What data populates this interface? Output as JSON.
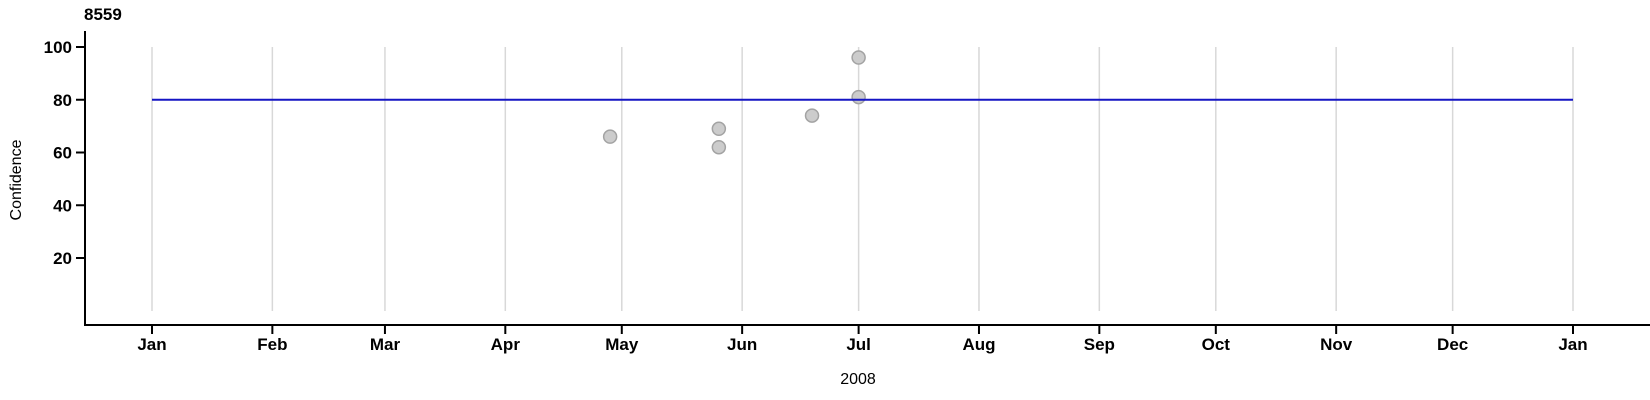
{
  "chart": {
    "title": "8559",
    "ylabel": "Confidence",
    "xlabel": "2008"
  },
  "chart_data": {
    "type": "scatter",
    "title": "8559",
    "xlabel": "2008",
    "ylabel": "Confidence",
    "legend": "none",
    "grid": "vertical-month-gridlines",
    "x_axis": {
      "unit": "day_of_year_2008",
      "range": [
        0,
        366
      ],
      "tick_days": [
        0,
        31,
        60,
        91,
        121,
        152,
        182,
        213,
        244,
        274,
        305,
        335,
        366
      ],
      "tick_labels": [
        "Jan",
        "Feb",
        "Mar",
        "Apr",
        "May",
        "Jun",
        "Jul",
        "Aug",
        "Sep",
        "Oct",
        "Nov",
        "Dec",
        "Jan"
      ]
    },
    "y_axis": {
      "label": "Confidence",
      "ticks": [
        20,
        40,
        60,
        80,
        100
      ],
      "range": [
        0,
        100
      ]
    },
    "threshold_line": {
      "value": 80,
      "color": "#1515c4"
    },
    "points": [
      {
        "date": "Apr 27",
        "day_of_year": 118,
        "confidence": 66
      },
      {
        "date": "May 25",
        "day_of_year": 146,
        "confidence": 69
      },
      {
        "date": "May 25",
        "day_of_year": 146,
        "confidence": 62
      },
      {
        "date": "Jun 18",
        "day_of_year": 170,
        "confidence": 74
      },
      {
        "date": "Jul 1",
        "day_of_year": 182,
        "confidence": 96
      },
      {
        "date": "Jul 1",
        "day_of_year": 182,
        "confidence": 81
      }
    ],
    "colors": {
      "point_fill": "#cccccc",
      "point_stroke": "#a3a3a3",
      "grid_line": "#d8d8d8",
      "axis": "#000000",
      "threshold": "#1515c4"
    }
  }
}
